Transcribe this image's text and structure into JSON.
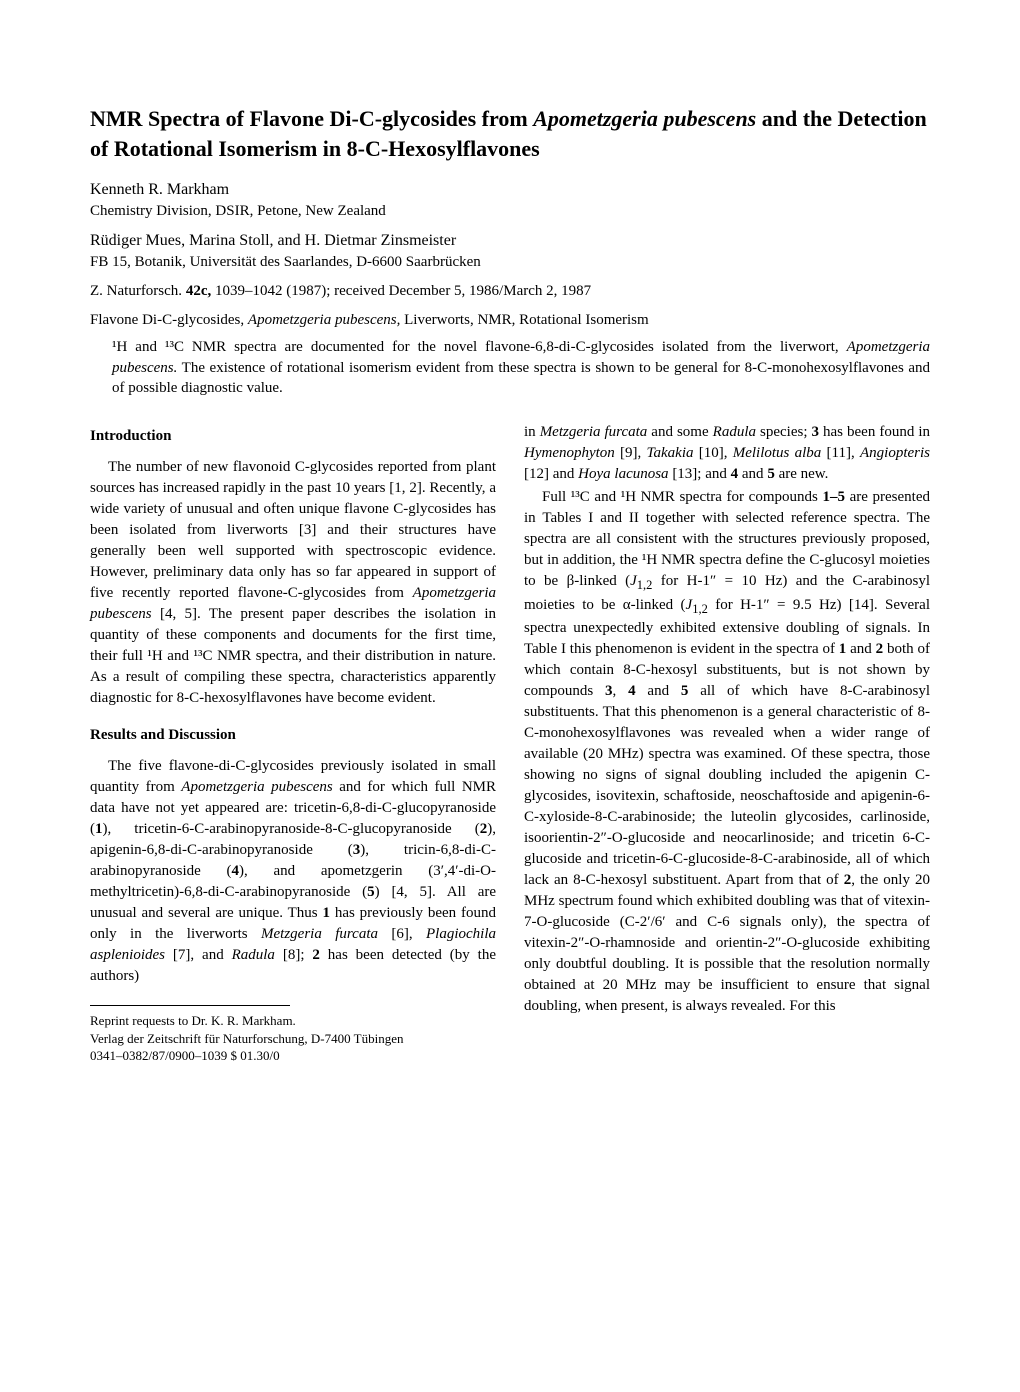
{
  "title_html": "NMR Spectra of Flavone Di-C-glycosides from <span class=\"italic\">Apometzgeria pubescens</span> and the Detection of Rotational Isomerism in 8-C-Hexosylflavones",
  "author1": "Kenneth R. Markham",
  "affiliation1": "Chemistry Division, DSIR, Petone, New Zealand",
  "author2": "Rüdiger Mues, Marina Stoll, and H. Dietmar Zinsmeister",
  "affiliation2": "FB 15, Botanik, Universität des Saarlandes, D-6600 Saarbrücken",
  "citation_html": "Z. Naturforsch. <span class=\"bold\">42c,</span> 1039–1042 (1987); received December 5, 1986/March 2, 1987",
  "keywords_html": "Flavone Di-C-glycosides, <span class=\"italic\">Apometzgeria pubescens,</span> Liverworts, NMR, Rotational Isomerism",
  "abstract_html": "¹H and ¹³C NMR spectra are documented for the novel flavone-6,8-di-C-glycosides isolated from the liverwort, <span class=\"italic\">Apometzgeria pubescens.</span> The existence of rotational isomerism evident from these spectra is shown to be general for 8-C-monohexosylflavones and of possible diagnostic value.",
  "introduction_heading": "Introduction",
  "intro_para_html": "The number of new flavonoid C-glycosides reported from plant sources has increased rapidly in the past 10 years [1, 2]. Recently, a wide variety of unusual and often unique flavone C-glycosides has been isolated from liverworts [3] and their structures have generally been well supported with spectroscopic evidence. However, preliminary data only has so far appeared in support of five recently reported flavone-C-glycosides from <span class=\"italic\">Apometzgeria pubescens</span> [4, 5]. The present paper describes the isolation in quantity of these components and documents for the first time, their full ¹H and ¹³C NMR spectra, and their distribution in nature. As a result of compiling these spectra, characteristics apparently diagnostic for 8-C-hexosylflavones have become evident.",
  "results_heading": "Results and Discussion",
  "results_para1_html": "The five flavone-di-C-glycosides previously isolated in small quantity from <span class=\"italic\">Apometzgeria pubescens</span> and for which full NMR data have not yet appeared are: tricetin-6,8-di-C-glucopyranoside (<span class=\"bold\">1</span>), tricetin-6-C-arabinopyranoside-8-C-glucopyranoside (<span class=\"bold\">2</span>), apigenin-6,8-di-C-arabinopyranoside (<span class=\"bold\">3</span>), tricin-6,8-di-C-arabinopyranoside (<span class=\"bold\">4</span>), and apometzgerin (3′,4′-di-O-methyltricetin)-6,8-di-C-arabinopyranoside (<span class=\"bold\">5</span>) [4, 5]. All are unusual and several are unique. Thus <span class=\"bold\">1</span> has previously been found only in the liverworts <span class=\"italic\">Metzgeria furcata</span> [6], <span class=\"italic\">Plagiochila asplenioides</span> [7], and <span class=\"italic\">Radula</span> [8]; <span class=\"bold\">2</span> has been detected (by the authors)",
  "col2_para1_html": "in <span class=\"italic\">Metzgeria furcata</span> and some <span class=\"italic\">Radula</span> species; <span class=\"bold\">3</span> has been found in <span class=\"italic\">Hymenophyton</span> [9], <span class=\"italic\">Takakia</span> [10], <span class=\"italic\">Melilotus alba</span> [11], <span class=\"italic\">Angiopteris</span> [12] and <span class=\"italic\">Hoya lacunosa</span> [13]; and <span class=\"bold\">4</span> and <span class=\"bold\">5</span> are new.",
  "col2_para2_html": "Full ¹³C and ¹H NMR spectra for compounds <span class=\"bold\">1–5</span> are presented in Tables I and II together with selected reference spectra. The spectra are all consistent with the structures previously proposed, but in addition, the ¹H NMR spectra define the C-glucosyl moieties to be β-linked (<span class=\"italic\">J</span><sub>1,2</sub> for H-1″ = 10 Hz) and the C-arabinosyl moieties to be α-linked (<span class=\"italic\">J</span><sub>1,2</sub> for H-1″ = 9.5 Hz) [14]. Several spectra unexpectedly exhibited extensive doubling of signals. In Table I this phenomenon is evident in the spectra of <span class=\"bold\">1</span> and <span class=\"bold\">2</span> both of which contain 8-C-hexosyl substituents, but is not shown by compounds <span class=\"bold\">3</span>, <span class=\"bold\">4</span> and <span class=\"bold\">5</span> all of which have 8-C-arabinosyl substituents. That this phenomenon is a general characteristic of 8-C-monohexosylflavones was revealed when a wider range of available (20 MHz) spectra was examined. Of these spectra, those showing no signs of signal doubling included the apigenin C-glycosides, isovitexin, schaftoside, neoschaftoside and apigenin-6-C-xyloside-8-C-arabinoside; the luteolin glycosides, carlinoside, isoorientin-2″-O-glucoside and neocarlinoside; and tricetin 6-C-glucoside and tricetin-6-C-glucoside-8-C-arabinoside, all of which lack an 8-C-hexosyl substituent. Apart from that of <span class=\"bold\">2</span>, the only 20 MHz spectrum found which exhibited doubling was that of vitexin-7-O-glucoside (C-2′/6′ and C-6 signals only), the spectra of vitexin-2″-O-rhamnoside and orientin-2″-O-glucoside exhibiting only doubtful doubling. It is possible that the resolution normally obtained at 20 MHz may be insufficient to ensure that signal doubling, when present, is always revealed. For this",
  "footnote_line1": "Reprint requests to Dr. K. R. Markham.",
  "footnote_line2": "Verlag der Zeitschrift für Naturforschung, D-7400 Tübingen",
  "footnote_line3": "0341–0382/87/0900–1039   $ 01.30/0"
}
